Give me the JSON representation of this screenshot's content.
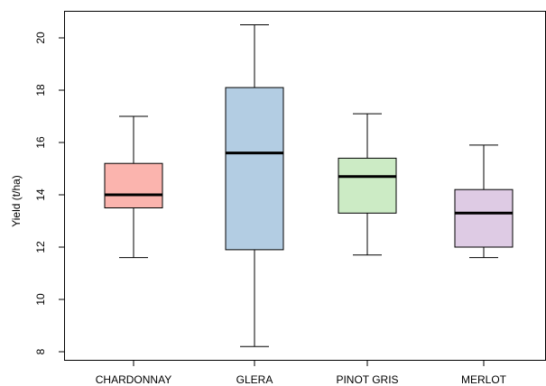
{
  "chart_data": {
    "type": "box",
    "ylabel": "Yield (t/ha)",
    "xlabel": "",
    "ylim": [
      7.7,
      21.0
    ],
    "yticks": [
      8,
      10,
      12,
      14,
      16,
      18,
      20
    ],
    "categories": [
      "CHARDONNAY",
      "GLERA",
      "PINOT GRIS",
      "MERLOT"
    ],
    "boxes": [
      {
        "name": "CHARDONNAY",
        "min": 11.6,
        "q1": 13.5,
        "median": 14.0,
        "q3": 15.2,
        "max": 17.0,
        "color": "#fbb4ae"
      },
      {
        "name": "GLERA",
        "min": 8.2,
        "q1": 11.9,
        "median": 15.6,
        "q3": 18.1,
        "max": 20.5,
        "color": "#b3cde3"
      },
      {
        "name": "PINOT GRIS",
        "min": 11.7,
        "q1": 13.3,
        "median": 14.7,
        "q3": 15.4,
        "max": 17.1,
        "color": "#ccebc5"
      },
      {
        "name": "MERLOT",
        "min": 11.6,
        "q1": 12.0,
        "median": 13.3,
        "q3": 14.2,
        "max": 15.9,
        "color": "#decbe4"
      }
    ]
  }
}
